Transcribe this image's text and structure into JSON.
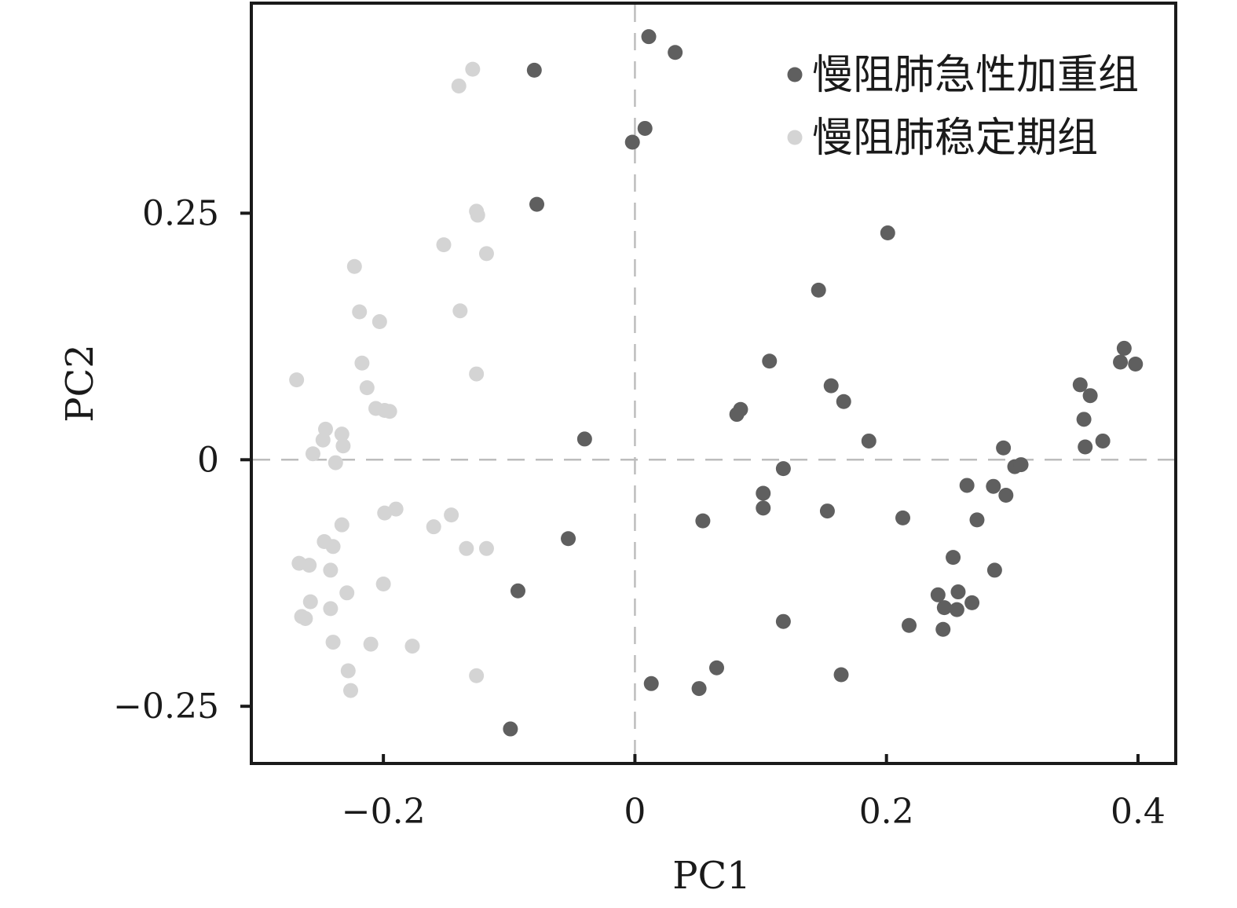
{
  "chart_data": {
    "type": "scatter",
    "xlabel": "PC1",
    "ylabel": "PC2",
    "xlim": [
      -0.305,
      0.43
    ],
    "ylim": [
      -0.308,
      0.463
    ],
    "x_ticks": [
      {
        "value": -0.2,
        "label": "−0.2"
      },
      {
        "value": 0,
        "label": "0"
      },
      {
        "value": 0.2,
        "label": "0.2"
      },
      {
        "value": 0.4,
        "label": "0.4"
      }
    ],
    "y_ticks": [
      {
        "value": 0.25,
        "label": "0.25"
      },
      {
        "value": 0,
        "label": "0"
      },
      {
        "value": -0.25,
        "label": "−0.25"
      }
    ],
    "reference_lines": {
      "x": 0,
      "y": 0,
      "style": "dashed"
    },
    "grid": false,
    "legend_position": "top-right",
    "series": [
      {
        "name": "慢阻肺急性加重组",
        "color": "#5f5f5f",
        "points": [
          [
            0.011,
            0.429
          ],
          [
            0.032,
            0.413
          ],
          [
            -0.08,
            0.395
          ],
          [
            0.008,
            0.336
          ],
          [
            -0.002,
            0.322
          ],
          [
            -0.078,
            0.259
          ],
          [
            0.201,
            0.23
          ],
          [
            0.146,
            0.172
          ],
          [
            0.107,
            0.1
          ],
          [
            0.156,
            0.075
          ],
          [
            0.166,
            0.059
          ],
          [
            0.084,
            0.051
          ],
          [
            0.081,
            0.046
          ],
          [
            -0.04,
            0.021
          ],
          [
            0.186,
            0.019
          ],
          [
            0.389,
            0.113
          ],
          [
            0.386,
            0.099
          ],
          [
            0.398,
            0.097
          ],
          [
            0.354,
            0.076
          ],
          [
            0.362,
            0.065
          ],
          [
            0.357,
            0.041
          ],
          [
            0.372,
            0.019
          ],
          [
            0.358,
            0.013
          ],
          [
            0.293,
            0.012
          ],
          [
            0.302,
            -0.007
          ],
          [
            0.307,
            -0.005
          ],
          [
            0.118,
            -0.009
          ],
          [
            0.264,
            -0.026
          ],
          [
            0.285,
            -0.027
          ],
          [
            0.295,
            -0.036
          ],
          [
            0.102,
            -0.034
          ],
          [
            0.102,
            -0.049
          ],
          [
            0.153,
            -0.052
          ],
          [
            0.213,
            -0.059
          ],
          [
            0.272,
            -0.061
          ],
          [
            0.054,
            -0.062
          ],
          [
            -0.053,
            -0.08
          ],
          [
            0.253,
            -0.099
          ],
          [
            0.286,
            -0.112
          ],
          [
            -0.093,
            -0.133
          ],
          [
            0.241,
            -0.137
          ],
          [
            0.257,
            -0.134
          ],
          [
            0.268,
            -0.145
          ],
          [
            0.246,
            -0.15
          ],
          [
            0.256,
            -0.152
          ],
          [
            0.118,
            -0.164
          ],
          [
            0.218,
            -0.168
          ],
          [
            0.245,
            -0.172
          ],
          [
            0.065,
            -0.211
          ],
          [
            0.164,
            -0.218
          ],
          [
            0.013,
            -0.227
          ],
          [
            0.051,
            -0.232
          ],
          [
            -0.099,
            -0.273
          ]
        ]
      },
      {
        "name": "慢阻肺稳定期组",
        "color": "#d4d4d4",
        "points": [
          [
            -0.129,
            0.396
          ],
          [
            -0.14,
            0.379
          ],
          [
            -0.126,
            0.252
          ],
          [
            -0.125,
            0.248
          ],
          [
            -0.152,
            0.218
          ],
          [
            -0.118,
            0.209
          ],
          [
            -0.223,
            0.196
          ],
          [
            -0.219,
            0.15
          ],
          [
            -0.203,
            0.14
          ],
          [
            -0.139,
            0.151
          ],
          [
            -0.217,
            0.098
          ],
          [
            -0.126,
            0.087
          ],
          [
            -0.269,
            0.081
          ],
          [
            -0.213,
            0.073
          ],
          [
            -0.206,
            0.052
          ],
          [
            -0.199,
            0.05
          ],
          [
            -0.195,
            0.049
          ],
          [
            -0.246,
            0.031
          ],
          [
            -0.233,
            0.026
          ],
          [
            -0.248,
            0.02
          ],
          [
            -0.232,
            0.014
          ],
          [
            -0.256,
            0.006
          ],
          [
            -0.238,
            -0.003
          ],
          [
            -0.199,
            -0.054
          ],
          [
            -0.19,
            -0.05
          ],
          [
            -0.146,
            -0.056
          ],
          [
            -0.16,
            -0.068
          ],
          [
            -0.233,
            -0.066
          ],
          [
            -0.247,
            -0.083
          ],
          [
            -0.24,
            -0.088
          ],
          [
            -0.134,
            -0.09
          ],
          [
            -0.118,
            -0.09
          ],
          [
            -0.267,
            -0.105
          ],
          [
            -0.259,
            -0.107
          ],
          [
            -0.242,
            -0.112
          ],
          [
            -0.2,
            -0.126
          ],
          [
            -0.229,
            -0.135
          ],
          [
            -0.258,
            -0.144
          ],
          [
            -0.242,
            -0.151
          ],
          [
            -0.265,
            -0.159
          ],
          [
            -0.262,
            -0.161
          ],
          [
            -0.24,
            -0.185
          ],
          [
            -0.21,
            -0.187
          ],
          [
            -0.177,
            -0.189
          ],
          [
            -0.228,
            -0.214
          ],
          [
            -0.126,
            -0.219
          ],
          [
            -0.226,
            -0.234
          ]
        ]
      }
    ]
  }
}
